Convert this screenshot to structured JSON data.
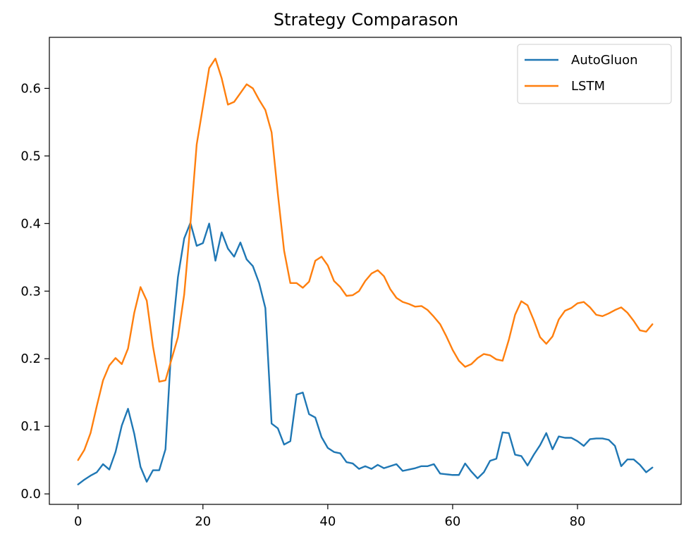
{
  "chart_data": {
    "type": "line",
    "title": "Strategy Comparason",
    "xlabel": "",
    "ylabel": "",
    "xlim": [
      -4.6,
      96.6
    ],
    "ylim": [
      -0.0155,
      0.6755
    ],
    "xticks": [
      0,
      20,
      40,
      60,
      80
    ],
    "yticks": [
      0.0,
      0.1,
      0.2,
      0.3,
      0.4,
      0.5,
      0.6
    ],
    "grid": false,
    "legend_position": "top-right",
    "x": [
      0,
      1,
      2,
      3,
      4,
      5,
      6,
      7,
      8,
      9,
      10,
      11,
      12,
      13,
      14,
      15,
      16,
      17,
      18,
      19,
      20,
      21,
      22,
      23,
      24,
      25,
      26,
      27,
      28,
      29,
      30,
      31,
      32,
      33,
      34,
      35,
      36,
      37,
      38,
      39,
      40,
      41,
      42,
      43,
      44,
      45,
      46,
      47,
      48,
      49,
      50,
      51,
      52,
      53,
      54,
      55,
      56,
      57,
      58,
      59,
      60,
      61,
      62,
      63,
      64,
      65,
      66,
      67,
      68,
      69,
      70,
      71,
      72,
      73,
      74,
      75,
      76,
      77,
      78,
      79,
      80,
      81,
      82,
      83,
      84,
      85,
      86,
      87,
      88,
      89,
      90,
      91,
      92
    ],
    "series": [
      {
        "name": "AutoGluon",
        "color": "#1f77b4",
        "values": [
          0.014,
          0.021,
          0.027,
          0.032,
          0.044,
          0.036,
          0.062,
          0.101,
          0.126,
          0.089,
          0.04,
          0.018,
          0.035,
          0.035,
          0.066,
          0.228,
          0.321,
          0.378,
          0.401,
          0.367,
          0.371,
          0.4,
          0.345,
          0.387,
          0.363,
          0.351,
          0.372,
          0.347,
          0.337,
          0.312,
          0.275,
          0.104,
          0.097,
          0.073,
          0.078,
          0.147,
          0.15,
          0.118,
          0.113,
          0.084,
          0.068,
          0.062,
          0.06,
          0.047,
          0.045,
          0.037,
          0.041,
          0.037,
          0.043,
          0.038,
          0.041,
          0.044,
          0.034,
          0.036,
          0.038,
          0.041,
          0.041,
          0.044,
          0.03,
          0.029,
          0.028,
          0.028,
          0.045,
          0.033,
          0.023,
          0.032,
          0.049,
          0.052,
          0.091,
          0.09,
          0.058,
          0.056,
          0.042,
          0.058,
          0.072,
          0.09,
          0.066,
          0.085,
          0.083,
          0.083,
          0.078,
          0.071,
          0.081,
          0.082,
          0.082,
          0.08,
          0.071,
          0.041,
          0.051,
          0.051,
          0.043,
          0.032,
          0.039
        ]
      },
      {
        "name": "LSTM",
        "color": "#ff7f0e",
        "values": [
          0.05,
          0.065,
          0.09,
          0.13,
          0.168,
          0.19,
          0.201,
          0.192,
          0.215,
          0.268,
          0.306,
          0.286,
          0.218,
          0.166,
          0.168,
          0.2,
          0.232,
          0.295,
          0.4,
          0.517,
          0.573,
          0.63,
          0.644,
          0.615,
          0.576,
          0.58,
          0.593,
          0.606,
          0.6,
          0.583,
          0.568,
          0.535,
          0.444,
          0.36,
          0.312,
          0.312,
          0.305,
          0.314,
          0.345,
          0.351,
          0.338,
          0.315,
          0.306,
          0.293,
          0.294,
          0.3,
          0.315,
          0.326,
          0.331,
          0.322,
          0.303,
          0.29,
          0.284,
          0.281,
          0.277,
          0.278,
          0.272,
          0.262,
          0.251,
          0.233,
          0.213,
          0.197,
          0.188,
          0.192,
          0.201,
          0.207,
          0.205,
          0.199,
          0.197,
          0.228,
          0.265,
          0.285,
          0.279,
          0.257,
          0.232,
          0.222,
          0.233,
          0.258,
          0.271,
          0.275,
          0.282,
          0.284,
          0.276,
          0.265,
          0.263,
          0.267,
          0.272,
          0.276,
          0.268,
          0.256,
          0.242,
          0.24,
          0.251
        ]
      }
    ]
  }
}
